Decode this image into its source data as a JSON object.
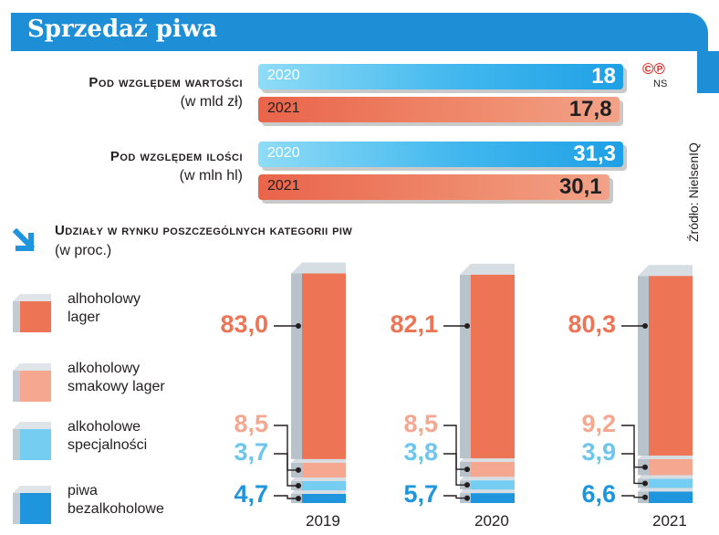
{
  "header": {
    "title": "Sprzedaż piwa"
  },
  "badges": {
    "cp": "©℗",
    "ns": "NS"
  },
  "source": "Źródło: NielsenIQ",
  "value_section": {
    "title": "Pod względem wartości",
    "unit": "(w mld zł)",
    "bars": [
      {
        "year": "2020",
        "value": 18,
        "label": "18"
      },
      {
        "year": "2021",
        "value": 17.8,
        "label": "17,8"
      }
    ]
  },
  "volume_section": {
    "title": "Pod względem ilości",
    "unit": "(w mln hl)",
    "bars": [
      {
        "year": "2020",
        "value": 31.3,
        "label": "31,3"
      },
      {
        "year": "2021",
        "value": 30.1,
        "label": "30,1"
      }
    ]
  },
  "shares": {
    "title": "Udziały w rynku poszczególnych kategorii piw",
    "unit": "(w proc.)"
  },
  "legend": [
    {
      "name": "alhoholowy lager",
      "line1": "alhoholowy",
      "line2": "lager",
      "color": "#ed7556"
    },
    {
      "name": "alkoholowy smakowy lager",
      "line1": "alkoholowy",
      "line2": "smakowy lager",
      "color": "#f5a88f"
    },
    {
      "name": "alkoholowe specjalności",
      "line1": "alkoholowe",
      "line2": "specjalności",
      "color": "#75cdf2"
    },
    {
      "name": "piwa bezalkoholowe",
      "line1": "piwa",
      "line2": "bezalkoholowe",
      "color": "#1e95dd"
    }
  ],
  "chart_data": [
    {
      "type": "bar",
      "title": "Pod względem wartości",
      "ylabel": "(w mld zł)",
      "categories": [
        "2020",
        "2021"
      ],
      "values": [
        18,
        17.8
      ]
    },
    {
      "type": "bar",
      "title": "Pod względem ilości",
      "ylabel": "(w mln hl)",
      "categories": [
        "2020",
        "2021"
      ],
      "values": [
        31.3,
        30.1
      ]
    },
    {
      "type": "bar",
      "stacked": true,
      "title": "Udziały w rynku poszczególnych kategorii piw",
      "ylabel": "(w proc.)",
      "categories": [
        "2019",
        "2020",
        "2021"
      ],
      "series": [
        {
          "name": "alhoholowy lager",
          "values": [
            83.0,
            82.1,
            80.3
          ],
          "labels": [
            "83,0",
            "82,1",
            "80,3"
          ],
          "color": "#ed7556"
        },
        {
          "name": "alkoholowy smakowy lager",
          "values": [
            8.5,
            8.5,
            9.2
          ],
          "labels": [
            "8,5",
            "8,5",
            "9,2"
          ],
          "color": "#f5a88f"
        },
        {
          "name": "alkoholowe specjalności",
          "values": [
            3.7,
            3.8,
            3.9
          ],
          "labels": [
            "3,7",
            "3,8",
            "3,9"
          ],
          "color": "#75cdf2"
        },
        {
          "name": "piwa bezalkoholowe",
          "values": [
            4.7,
            5.7,
            6.6
          ],
          "labels": [
            "4,7",
            "5,7",
            "6,6"
          ],
          "color": "#1e95dd"
        }
      ],
      "label_colors": [
        "#ed7556",
        "#f5a88f",
        "#6cc6ee",
        "#1e95dd"
      ]
    }
  ]
}
